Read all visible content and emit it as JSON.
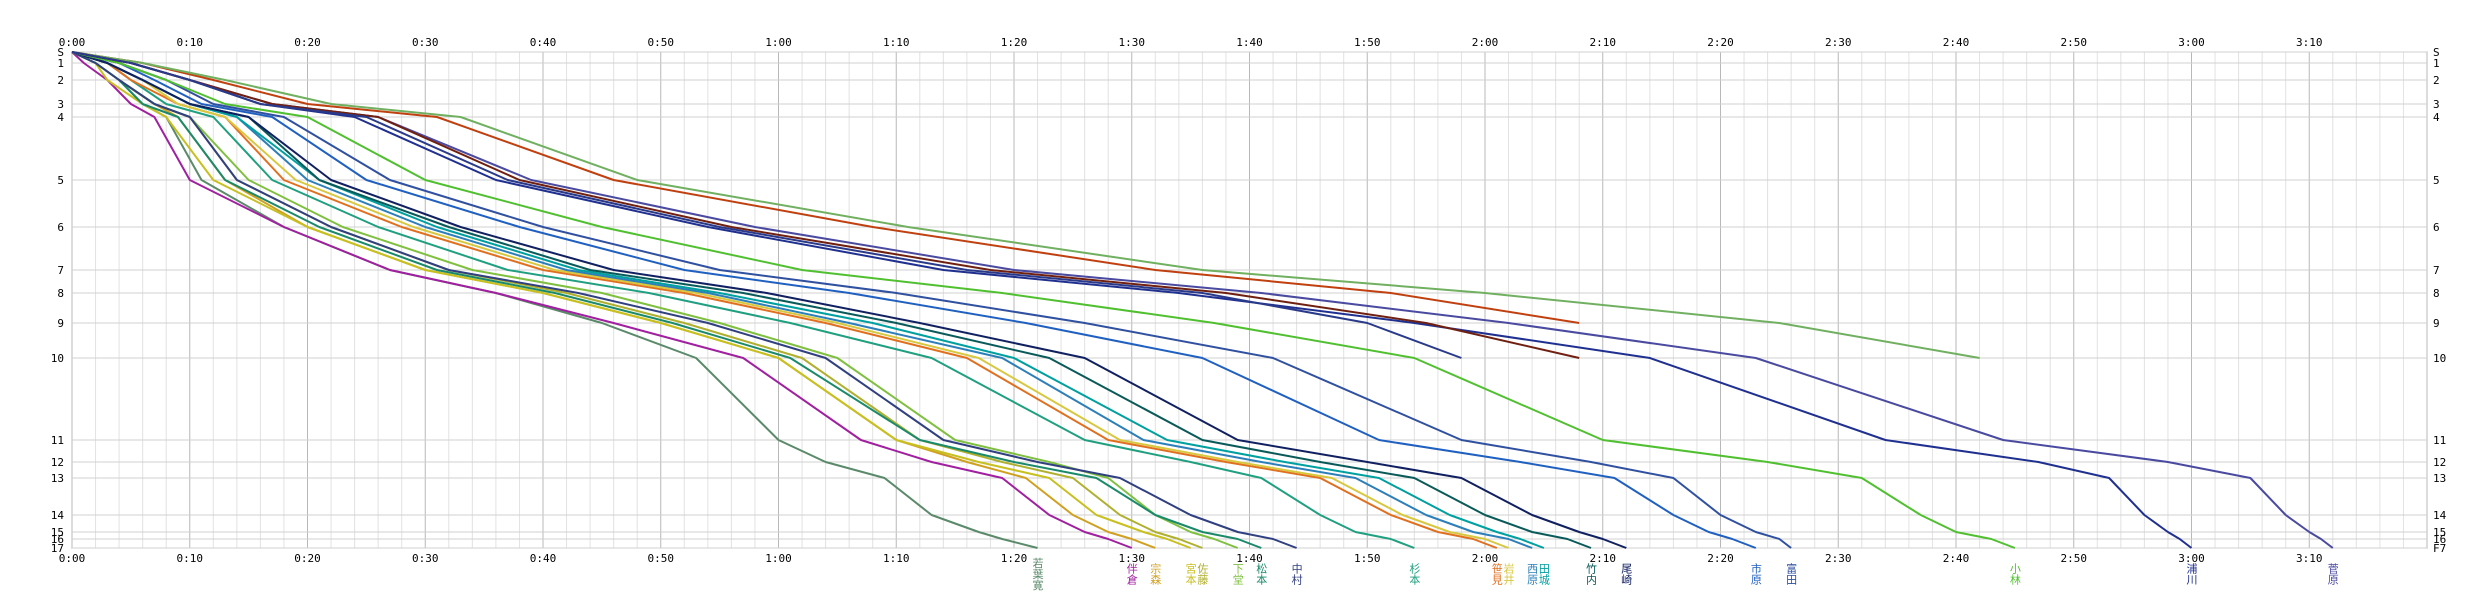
{
  "chart_data": {
    "type": "line",
    "title": "",
    "xlabel": "",
    "ylabel": "",
    "x_unit": "minutes",
    "xlim": [
      0,
      200
    ],
    "x_tick_labels": [
      "0:00",
      "0:10",
      "0:20",
      "0:30",
      "0:40",
      "0:50",
      "1:00",
      "1:10",
      "1:20",
      "1:30",
      "1:40",
      "1:50",
      "2:00",
      "2:10",
      "2:20",
      "2:30",
      "2:40",
      "2:50",
      "3:00",
      "3:10"
    ],
    "x_tick_values": [
      0,
      10,
      20,
      30,
      40,
      50,
      60,
      70,
      80,
      90,
      100,
      110,
      120,
      130,
      140,
      150,
      160,
      170,
      180,
      190
    ],
    "y_stations": [
      0,
      1,
      2,
      3,
      4,
      5,
      6,
      7,
      8,
      9,
      10,
      11,
      12,
      13,
      14,
      15,
      16,
      17
    ],
    "y_tick_labels": [
      "S",
      "1",
      "2",
      "3",
      "4",
      "5",
      "6",
      "7",
      "8",
      "9",
      "10",
      "11",
      "12",
      "13",
      "14",
      "15",
      "16",
      "17"
    ],
    "y_tick_labels_right": [
      "S",
      "1",
      "2",
      "3",
      "4",
      "5",
      "6",
      "7",
      "8",
      "9",
      "10",
      "11",
      "12",
      "13",
      "14",
      "15",
      "16",
      "F7"
    ],
    "grid": true,
    "legend": "bottom-names",
    "series": [
      {
        "name": "若葉寛",
        "color": "#5a8a6a",
        "y": [
          0,
          1,
          2,
          3,
          4,
          5,
          6,
          7,
          8,
          9,
          10,
          11,
          12,
          13,
          14,
          15,
          16,
          17
        ],
        "x": [
          0,
          2,
          4,
          6,
          8,
          11,
          18,
          27,
          36,
          45,
          53,
          60,
          64,
          69,
          73,
          77,
          79,
          82
        ]
      },
      {
        "name": "宗森",
        "color": "#d0a020",
        "y": [
          0,
          1,
          2,
          3,
          4,
          5,
          6,
          7,
          8,
          9,
          10,
          11,
          12,
          13,
          14,
          15,
          16,
          17
        ],
        "x": [
          0,
          2,
          4,
          7,
          9,
          13,
          20,
          30,
          40,
          50,
          60,
          70,
          76,
          81,
          85,
          88,
          90,
          92
        ]
      },
      {
        "name": "伴倉",
        "color": "#a020a0",
        "y": [
          0,
          1,
          2,
          3,
          4,
          5,
          6,
          7,
          8,
          9,
          10,
          11,
          12,
          13,
          14,
          15,
          16,
          17
        ],
        "x": [
          0,
          1,
          3,
          5,
          7,
          10,
          18,
          27,
          36,
          46,
          57,
          67,
          73,
          79,
          83,
          86,
          88,
          90
        ]
      },
      {
        "name": "宮本",
        "color": "#c8c020",
        "y": [
          0,
          1,
          2,
          3,
          4,
          5,
          6,
          7,
          8,
          9,
          10,
          11,
          12,
          13,
          14,
          15,
          16,
          17
        ],
        "x": [
          0,
          2,
          3,
          6,
          8,
          12,
          20,
          30,
          40,
          50,
          60,
          70,
          77,
          83,
          87,
          91,
          93,
          95
        ]
      },
      {
        "name": "佐藤",
        "color": "#b0b030",
        "y": [
          0,
          1,
          2,
          3,
          4,
          5,
          6,
          7,
          8,
          9,
          10,
          11,
          12,
          13,
          14,
          15,
          16,
          17
        ],
        "x": [
          0,
          2,
          4,
          7,
          10,
          14,
          22,
          32,
          42,
          52,
          62,
          72,
          79,
          85,
          89,
          92,
          94,
          96
        ]
      },
      {
        "name": "下堂",
        "color": "#80c040",
        "y": [
          0,
          1,
          2,
          3,
          4,
          5,
          6,
          7,
          8,
          9,
          10,
          11,
          12,
          13,
          14,
          15,
          16,
          17
        ],
        "x": [
          0,
          2,
          4,
          7,
          10,
          15,
          23,
          34,
          45,
          55,
          65,
          75,
          83,
          88,
          92,
          95,
          97,
          99
        ]
      },
      {
        "name": "松本",
        "color": "#1a8a6a",
        "y": [
          0,
          1,
          2,
          3,
          4,
          5,
          6,
          7,
          8,
          9,
          10,
          11,
          12,
          13,
          14,
          15,
          16,
          17
        ],
        "x": [
          0,
          2,
          4,
          6,
          9,
          13,
          21,
          31,
          41,
          51,
          61,
          72,
          80,
          87,
          92,
          96,
          99,
          101
        ]
      },
      {
        "name": "中村",
        "color": "#304080",
        "y": [
          0,
          1,
          2,
          3,
          4,
          5,
          6,
          7,
          8,
          9,
          10,
          11,
          12,
          13,
          14,
          15,
          16,
          17
        ],
        "x": [
          0,
          2,
          4,
          7,
          10,
          14,
          22,
          32,
          43,
          54,
          64,
          74,
          82,
          89,
          95,
          99,
          102,
          104
        ]
      },
      {
        "name": "杉本",
        "color": "#20a080",
        "y": [
          0,
          1,
          2,
          3,
          4,
          5,
          6,
          7,
          8,
          9,
          10,
          11,
          12,
          13,
          14,
          15,
          16,
          17
        ],
        "x": [
          0,
          3,
          5,
          8,
          12,
          17,
          26,
          37,
          49,
          61,
          73,
          86,
          95,
          101,
          106,
          109,
          112,
          114
        ]
      },
      {
        "name": "笹見",
        "color": "#e07020",
        "y": [
          0,
          1,
          2,
          3,
          4,
          5,
          6,
          7,
          8,
          9,
          10,
          11,
          12,
          13,
          14,
          15,
          16,
          17
        ],
        "x": [
          0,
          3,
          5,
          9,
          13,
          18,
          28,
          40,
          52,
          64,
          76,
          88,
          98,
          106,
          112,
          116,
          119,
          121
        ]
      },
      {
        "name": "岩井",
        "color": "#d8c840",
        "y": [
          0,
          1,
          2,
          3,
          4,
          5,
          6,
          7,
          8,
          9,
          10,
          11,
          12,
          13,
          14,
          15,
          16,
          17
        ],
        "x": [
          0,
          3,
          6,
          9,
          13,
          19,
          29,
          41,
          53,
          65,
          77,
          89,
          99,
          107,
          113,
          117,
          120,
          122
        ]
      },
      {
        "name": "西原",
        "color": "#2c7fb8",
        "y": [
          0,
          1,
          2,
          3,
          4,
          5,
          6,
          7,
          8,
          9,
          10,
          11,
          12,
          13,
          14,
          15,
          16,
          17
        ],
        "x": [
          0,
          3,
          6,
          10,
          14,
          20,
          30,
          42,
          54,
          66,
          79,
          91,
          101,
          109,
          115,
          119,
          122,
          124
        ]
      },
      {
        "name": "田城",
        "color": "#00a0a0",
        "y": [
          0,
          1,
          2,
          3,
          4,
          5,
          6,
          7,
          8,
          9,
          10,
          11,
          12,
          13,
          14,
          15,
          16,
          17
        ],
        "x": [
          0,
          3,
          6,
          10,
          14,
          21,
          31,
          43,
          55,
          68,
          80,
          93,
          103,
          111,
          117,
          121,
          123,
          125
        ]
      },
      {
        "name": "竹内",
        "color": "#0a5a5a",
        "y": [
          0,
          1,
          2,
          3,
          4,
          5,
          6,
          7,
          8,
          9,
          10,
          11,
          12,
          13,
          14,
          15,
          16,
          17
        ],
        "x": [
          0,
          3,
          6,
          10,
          15,
          21,
          32,
          44,
          57,
          70,
          83,
          96,
          106,
          114,
          120,
          124,
          127,
          129
        ]
      },
      {
        "name": "尾崎",
        "color": "#102060",
        "y": [
          0,
          1,
          2,
          3,
          4,
          5,
          6,
          7,
          8,
          9,
          10,
          11,
          12,
          13,
          14,
          15,
          16,
          17
        ],
        "x": [
          0,
          3,
          6,
          10,
          15,
          22,
          33,
          46,
          59,
          72,
          86,
          99,
          110,
          118,
          124,
          128,
          130,
          132
        ]
      },
      {
        "name": "市原",
        "color": "#2060c0",
        "y": [
          0,
          1,
          2,
          3,
          4,
          5,
          6,
          7,
          8,
          9,
          10,
          11,
          12,
          13,
          14,
          15,
          16,
          17
        ],
        "x": [
          0,
          4,
          7,
          11,
          17,
          25,
          38,
          52,
          66,
          81,
          96,
          111,
          123,
          131,
          136,
          139,
          141,
          143
        ]
      },
      {
        "name": "富田",
        "color": "#3050a0",
        "y": [
          0,
          1,
          2,
          3,
          4,
          5,
          6,
          7,
          8,
          9,
          10,
          11,
          12,
          13,
          14,
          15,
          16,
          17
        ],
        "x": [
          0,
          4,
          8,
          12,
          18,
          27,
          40,
          55,
          70,
          86,
          102,
          118,
          129,
          136,
          140,
          143,
          145,
          146
        ]
      },
      {
        "name": "小林",
        "color": "#50c030",
        "y": [
          0,
          1,
          2,
          3,
          4,
          5,
          6,
          7,
          8,
          9,
          10,
          11,
          12,
          13,
          14,
          15,
          16,
          17
        ],
        "x": [
          0,
          4,
          8,
          13,
          20,
          30,
          45,
          62,
          79,
          97,
          114,
          130,
          144,
          152,
          157,
          160,
          163,
          165
        ]
      },
      {
        "name": "浦川",
        "color": "#203090",
        "y": [
          0,
          1,
          2,
          3,
          4,
          5,
          6,
          7,
          8,
          9,
          10,
          11,
          12,
          13,
          14,
          15,
          16,
          17
        ],
        "x": [
          0,
          5,
          10,
          16,
          24,
          36,
          54,
          74,
          94,
          114,
          134,
          154,
          167,
          173,
          176,
          178,
          179,
          180
        ]
      },
      {
        "name": "菅原",
        "color": "#4a4aa0",
        "y": [
          0,
          1,
          2,
          3,
          4,
          5,
          6,
          7,
          8,
          9,
          10,
          11,
          12,
          13,
          14,
          15,
          16,
          17
        ],
        "x": [
          0,
          5,
          10,
          17,
          26,
          39,
          58,
          80,
          101,
          122,
          143,
          164,
          178,
          185,
          188,
          190,
          191,
          192
        ]
      },
      {
        "name": "",
        "color": "#c04010",
        "y": [
          0,
          1,
          2,
          3,
          4,
          5,
          6,
          7,
          8,
          9
        ],
        "x": [
          0,
          6,
          12,
          20,
          31,
          46,
          68,
          92,
          112,
          128
        ]
      },
      {
        "name": "",
        "color": "#70b060",
        "y": [
          0,
          1,
          2,
          3,
          4,
          5,
          6,
          7,
          8,
          9,
          10
        ],
        "x": [
          0,
          6,
          13,
          22,
          33,
          48,
          71,
          96,
          120,
          145,
          162
        ]
      },
      {
        "name": "",
        "color": "#702010",
        "y": [
          0,
          1,
          2,
          3,
          4,
          5,
          6,
          7,
          8,
          9,
          10
        ],
        "x": [
          0,
          5,
          10,
          17,
          26,
          38,
          56,
          78,
          98,
          115,
          128
        ]
      },
      {
        "name": "",
        "color": "#2a3a8a",
        "y": [
          0,
          1,
          2,
          3,
          4,
          5,
          6,
          7,
          8,
          9,
          10
        ],
        "x": [
          0,
          5,
          10,
          16,
          25,
          37,
          55,
          76,
          96,
          110,
          118
        ]
      }
    ]
  }
}
